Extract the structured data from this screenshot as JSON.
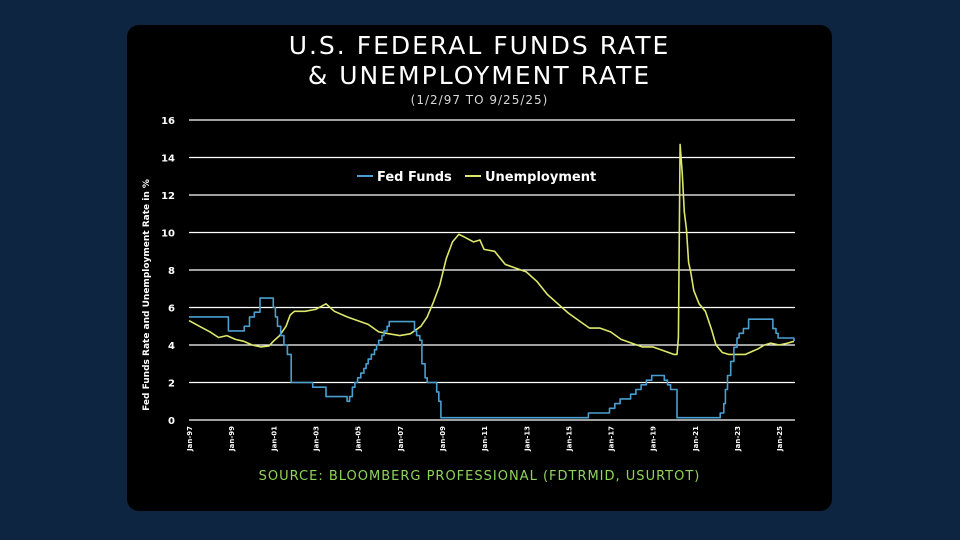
{
  "chart_data": {
    "type": "line",
    "title_line1": "U.S. FEDERAL FUNDS RATE",
    "title_line2": "& UNEMPLOYMENT RATE",
    "subtitle": "(1/2/97 TO 9/25/25)",
    "ylabel": "Fed Funds Rate and Unemployment Rate in %",
    "source": "SOURCE: BLOOMBERG PROFESSIONAL (FDTRMID, USURTOT)",
    "ylim": [
      0,
      16
    ],
    "xlim": [
      1997.0,
      2025.75
    ],
    "y_ticks": [
      0,
      2,
      4,
      6,
      8,
      10,
      12,
      14,
      16
    ],
    "x_ticks": [
      {
        "label": "Jan-97",
        "x": 1997
      },
      {
        "label": "Jan-99",
        "x": 1999
      },
      {
        "label": "Jan-01",
        "x": 2001
      },
      {
        "label": "Jan-03",
        "x": 2003
      },
      {
        "label": "Jan-05",
        "x": 2005
      },
      {
        "label": "Jan-07",
        "x": 2007
      },
      {
        "label": "Jan-09",
        "x": 2009
      },
      {
        "label": "Jan-11",
        "x": 2011
      },
      {
        "label": "Jan-13",
        "x": 2013
      },
      {
        "label": "Jan-15",
        "x": 2015
      },
      {
        "label": "Jan-17",
        "x": 2017
      },
      {
        "label": "Jan-19",
        "x": 2019
      },
      {
        "label": "Jan-21",
        "x": 2021
      },
      {
        "label": "Jan-23",
        "x": 2023
      },
      {
        "label": "Jan-25",
        "x": 2025
      }
    ],
    "grid": true,
    "legend_position": "top-center",
    "series": [
      {
        "name": "Fed Funds",
        "color": "#4a9fd0",
        "step": true,
        "x": [
          1997.0,
          1998.75,
          1998.87,
          1999.5,
          1999.62,
          1999.87,
          2000.1,
          2000.37,
          2001.0,
          2001.1,
          2001.2,
          2001.35,
          2001.5,
          2001.67,
          2001.85,
          2002.87,
          2003.5,
          2004.5,
          2004.62,
          2004.75,
          2004.87,
          2005.0,
          2005.15,
          2005.3,
          2005.4,
          2005.5,
          2005.65,
          2005.8,
          2005.9,
          2006.0,
          2006.15,
          2006.25,
          2006.4,
          2006.5,
          2007.7,
          2007.8,
          2007.95,
          2008.05,
          2008.2,
          2008.3,
          2008.75,
          2008.85,
          2008.95,
          2015.95,
          2016.95,
          2017.2,
          2017.45,
          2017.95,
          2018.2,
          2018.45,
          2018.7,
          2018.95,
          2019.55,
          2019.7,
          2019.85,
          2020.15,
          2020.22,
          2022.2,
          2022.37,
          2022.45,
          2022.55,
          2022.7,
          2022.85,
          2023.0,
          2023.1,
          2023.3,
          2023.55,
          2024.7,
          2024.85,
          2024.95,
          2025.7
        ],
        "values": [
          5.5,
          5.5,
          4.75,
          4.75,
          5.0,
          5.5,
          5.75,
          6.5,
          6.0,
          5.5,
          5.0,
          4.5,
          4.0,
          3.5,
          2.0,
          1.75,
          1.25,
          1.0,
          1.25,
          1.75,
          2.0,
          2.25,
          2.5,
          2.75,
          3.0,
          3.25,
          3.5,
          3.75,
          4.0,
          4.25,
          4.5,
          4.75,
          5.0,
          5.25,
          4.75,
          4.5,
          4.25,
          3.0,
          2.25,
          2.0,
          1.5,
          1.0,
          0.125,
          0.375,
          0.625,
          0.875,
          1.125,
          1.375,
          1.625,
          1.875,
          2.125,
          2.375,
          2.125,
          1.875,
          1.625,
          0.125,
          0.125,
          0.375,
          0.875,
          1.625,
          2.375,
          3.125,
          3.875,
          4.375,
          4.625,
          4.875,
          5.375,
          4.875,
          4.625,
          4.375,
          4.25
        ]
      },
      {
        "name": "Unemployment",
        "color": "#dde86a",
        "step": false,
        "x": [
          1997.0,
          1997.5,
          1998.0,
          1998.4,
          1998.8,
          1999.2,
          1999.6,
          2000.0,
          2000.4,
          2000.8,
          2001.0,
          2001.3,
          2001.6,
          2001.8,
          2002.0,
          2002.5,
          2003.0,
          2003.5,
          2003.9,
          2004.5,
          2005.0,
          2005.5,
          2006.0,
          2006.5,
          2007.0,
          2007.5,
          2008.0,
          2008.3,
          2008.6,
          2008.9,
          2009.2,
          2009.5,
          2009.8,
          2010.0,
          2010.5,
          2010.8,
          2011.0,
          2011.5,
          2012.0,
          2012.5,
          2013.0,
          2013.5,
          2014.0,
          2014.5,
          2015.0,
          2015.5,
          2016.0,
          2016.5,
          2017.0,
          2017.5,
          2018.0,
          2018.5,
          2019.0,
          2019.5,
          2020.0,
          2020.15,
          2020.22,
          2020.3,
          2020.4,
          2020.5,
          2020.6,
          2020.7,
          2020.8,
          2020.95,
          2021.2,
          2021.5,
          2021.8,
          2022.0,
          2022.3,
          2022.6,
          2023.0,
          2023.4,
          2023.8,
          2024.0,
          2024.3,
          2024.6,
          2025.0,
          2025.4,
          2025.7
        ],
        "values": [
          5.3,
          5.0,
          4.7,
          4.4,
          4.5,
          4.3,
          4.2,
          4.0,
          3.9,
          3.95,
          4.2,
          4.5,
          5.0,
          5.6,
          5.8,
          5.8,
          5.9,
          6.2,
          5.8,
          5.5,
          5.3,
          5.1,
          4.7,
          4.6,
          4.5,
          4.6,
          5.0,
          5.5,
          6.3,
          7.2,
          8.6,
          9.5,
          9.9,
          9.8,
          9.5,
          9.6,
          9.1,
          9.0,
          8.3,
          8.1,
          7.9,
          7.4,
          6.7,
          6.2,
          5.7,
          5.3,
          4.9,
          4.9,
          4.7,
          4.3,
          4.1,
          3.9,
          3.9,
          3.7,
          3.5,
          3.5,
          4.4,
          14.7,
          13.2,
          11.1,
          10.2,
          8.4,
          7.9,
          6.9,
          6.2,
          5.8,
          4.8,
          4.0,
          3.6,
          3.5,
          3.5,
          3.5,
          3.7,
          3.8,
          4.0,
          4.1,
          4.0,
          4.1,
          4.2
        ]
      }
    ]
  }
}
